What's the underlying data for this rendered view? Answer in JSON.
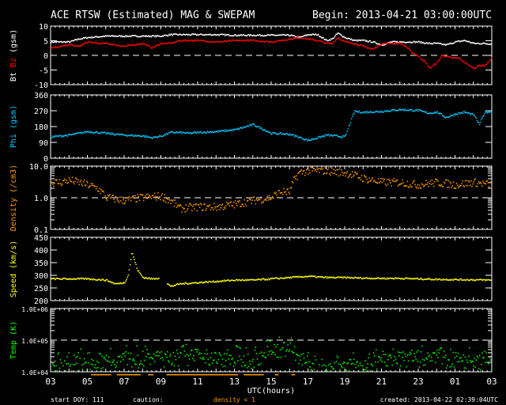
{
  "header": {
    "title": "ACE RTSW (Estimated) MAG & SWEPAM",
    "begin": "Begin: 2013-04-21 03:00:00UTC"
  },
  "footer": {
    "start_doy": "start DOY: 111",
    "caution": "caution:",
    "caution_note": "density < 1",
    "created": "created: 2013-04-22 02:39:04UTC"
  },
  "colors": {
    "bt": "#ffffff",
    "bz": "#ff0000",
    "phi": "#00c8ff",
    "density": "#ff9900",
    "speed": "#ffff00",
    "temp": "#00ff00"
  },
  "chart_data": [
    {
      "type": "scatter",
      "name": "mag",
      "ylabel_parts": [
        "Bt",
        "Bz",
        "(gsm)"
      ],
      "yscale": "linear",
      "ylim": [
        -10,
        10
      ],
      "yticks": [
        10,
        5,
        0,
        -5,
        -10
      ],
      "ytick_labels": [
        "10",
        "5",
        "0",
        "-5",
        "-10"
      ],
      "dashed_line": 0,
      "series": [
        {
          "name": "Bt",
          "color": "#ffffff",
          "x": [
            0,
            0.5,
            1,
            1.5,
            2,
            3,
            4,
            5,
            6,
            6.5,
            7,
            8,
            9,
            10,
            11,
            12,
            13,
            13.5,
            14,
            14.5,
            15,
            15.3,
            15.6,
            16,
            16.5,
            17,
            17.5,
            18,
            18.5,
            19,
            19.5,
            20,
            20.5,
            21,
            21.5,
            22,
            22.5,
            23,
            23.5,
            24
          ],
          "y": [
            4.5,
            4.5,
            4.5,
            5.5,
            6,
            6.5,
            6.5,
            6.5,
            6.5,
            7,
            7,
            7,
            7,
            6.8,
            6.8,
            6.8,
            6.8,
            6,
            7,
            7,
            5,
            5.5,
            7.5,
            6,
            5,
            5,
            4.5,
            3.5,
            4.5,
            4.5,
            4.5,
            4.5,
            4,
            4,
            3.5,
            4.5,
            5,
            4,
            4,
            3.8
          ]
        },
        {
          "name": "Bz",
          "color": "#ff0000",
          "x": [
            0,
            0.5,
            1,
            1.5,
            2,
            2.5,
            3,
            3.5,
            4,
            4.5,
            5,
            5.5,
            6,
            6.5,
            7,
            8,
            9,
            10,
            11,
            12,
            12.5,
            13,
            13.5,
            14,
            14.5,
            15,
            15.3,
            15.6,
            16,
            16.5,
            17,
            17.5,
            18,
            18.5,
            19,
            19.3,
            19.6,
            19.9,
            20.3,
            20.6,
            21,
            21.3,
            21.8,
            22.2,
            22.6,
            23,
            23.3,
            23.6,
            24
          ],
          "y": [
            2.5,
            3,
            3.5,
            3,
            4.5,
            4,
            4,
            3.5,
            3,
            3.5,
            4,
            2.5,
            4,
            4,
            5,
            5,
            4.5,
            5,
            5,
            4.5,
            5,
            5.5,
            6,
            5.5,
            5,
            4,
            4,
            6,
            4.5,
            4,
            3,
            2,
            4,
            4,
            4,
            3,
            1,
            0,
            -2,
            -4.5,
            -2.5,
            0,
            -1,
            -1,
            -3,
            -4.5,
            -3.5,
            -3.5,
            -1
          ]
        }
      ]
    },
    {
      "type": "scatter",
      "name": "phi",
      "ylabel": "Phi (gsm)",
      "yscale": "linear",
      "ylim": [
        0,
        360
      ],
      "yticks": [
        360,
        270,
        180,
        90,
        0
      ],
      "ytick_labels": [
        "360",
        "270",
        "180",
        "90",
        "0"
      ],
      "series": [
        {
          "name": "Phi",
          "color": "#00c8ff",
          "x": [
            0,
            1,
            2,
            3,
            4,
            5,
            5.5,
            6,
            6.5,
            7,
            7.5,
            8,
            9,
            10,
            11,
            11.5,
            12,
            13,
            14,
            15,
            16,
            16.5,
            17,
            18,
            19,
            20,
            20.5,
            21,
            21.5,
            22,
            22.5,
            23,
            23.3,
            23.6,
            24
          ],
          "y": [
            120,
            130,
            150,
            140,
            130,
            125,
            115,
            125,
            145,
            145,
            140,
            145,
            150,
            160,
            190,
            165,
            140,
            135,
            100,
            130,
            120,
            265,
            260,
            265,
            275,
            270,
            255,
            260,
            230,
            250,
            260,
            245,
            190,
            260,
            265
          ]
        }
      ]
    },
    {
      "type": "scatter",
      "name": "density",
      "ylabel": "Density (/cm3)",
      "yscale": "log",
      "ylim": [
        0.1,
        10
      ],
      "yticks": [
        10,
        1,
        0.1
      ],
      "ytick_labels": [
        "10.0",
        "1.0",
        "0.1"
      ],
      "dashed_line": 1,
      "series": [
        {
          "name": "Density",
          "color": "#ff9900",
          "x": [
            0,
            0.5,
            1,
            1.5,
            2,
            2.5,
            3,
            3.5,
            4,
            5,
            6,
            7,
            8,
            9,
            10,
            11,
            12,
            12.5,
            13,
            13.5,
            14,
            15,
            16,
            16.5,
            17,
            18,
            19,
            20,
            21,
            22,
            23,
            24
          ],
          "y": [
            3,
            3,
            3.5,
            3,
            2.5,
            2,
            1,
            0.9,
            0.8,
            1,
            1.1,
            0.45,
            0.5,
            0.5,
            0.6,
            0.8,
            1,
            1.5,
            1.5,
            6,
            7,
            7,
            6,
            5,
            4,
            3,
            3,
            2.5,
            3,
            2.5,
            3,
            2.5
          ]
        }
      ]
    },
    {
      "type": "scatter",
      "name": "speed",
      "ylabel": "Speed (km/s)",
      "yscale": "linear",
      "ylim": [
        200,
        450
      ],
      "yticks": [
        450,
        400,
        350,
        300,
        250,
        200
      ],
      "ytick_labels": [
        "450",
        "400",
        "350",
        "300",
        "250",
        "200"
      ],
      "series": [
        {
          "name": "Speed",
          "color": "#ffff00",
          "x": [
            0,
            1,
            2,
            3,
            3.5,
            4,
            4.2,
            4.4,
            4.7,
            5,
            5.5,
            6,
            6.5,
            7,
            8,
            9,
            10,
            11,
            12,
            13,
            14,
            15,
            16,
            17,
            18,
            19,
            20,
            21,
            22,
            23,
            24
          ],
          "y": [
            285,
            285,
            285,
            280,
            265,
            270,
            300,
            390,
            320,
            290,
            285,
            290,
            255,
            265,
            270,
            275,
            280,
            280,
            285,
            290,
            295,
            290,
            290,
            288,
            287,
            287,
            285,
            283,
            282,
            281,
            280
          ]
        }
      ]
    },
    {
      "type": "scatter",
      "name": "temperature",
      "ylabel": "Temp (K)",
      "yscale": "log",
      "ylim": [
        10000,
        1000000
      ],
      "yticks": [
        1000000,
        100000,
        10000
      ],
      "ytick_labels": [
        "1.0E+06",
        "1.0E+05",
        "1.0E+04"
      ],
      "dashed_line": 100000,
      "series": [
        {
          "name": "Temp",
          "color": "#00ff00",
          "x": [
            0,
            1,
            2,
            3,
            4,
            5,
            6,
            7,
            8,
            9,
            10,
            11,
            12,
            12.5,
            13,
            13.5,
            14,
            14.5,
            15,
            16,
            17,
            18,
            19,
            20,
            21,
            22,
            23,
            24
          ],
          "y": [
            14000,
            16000,
            20000,
            22000,
            25000,
            22000,
            24000,
            26000,
            28000,
            25000,
            24000,
            22000,
            40000,
            50000,
            45000,
            22000,
            14000,
            10500,
            11000,
            13000,
            15000,
            22000,
            24000,
            24000,
            22000,
            23000,
            20000,
            16000
          ]
        }
      ]
    }
  ],
  "xaxis": {
    "label": "UTC(hours)",
    "tick_labels": [
      "03",
      "05",
      "07",
      "09",
      "11",
      "13",
      "15",
      "17",
      "19",
      "21",
      "23",
      "01",
      "03"
    ],
    "range_hours": [
      0,
      24
    ]
  },
  "caution_intervals_hours": [
    [
      2.2,
      3.3
    ],
    [
      3.6,
      4.9
    ],
    [
      5.3,
      5.6
    ],
    [
      6.3,
      10.2
    ],
    [
      10.5,
      11.6
    ],
    [
      12.2,
      12.4
    ],
    [
      13.1,
      13.3
    ]
  ]
}
